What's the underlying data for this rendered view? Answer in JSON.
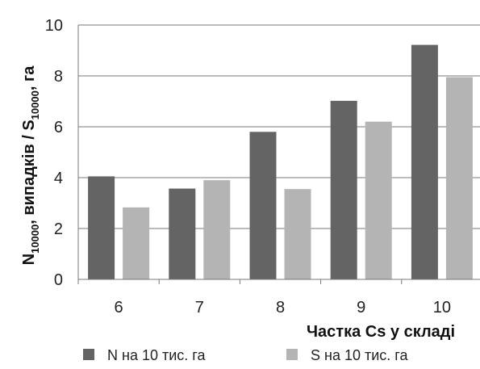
{
  "chart_data": {
    "type": "bar",
    "categories": [
      "6",
      "7",
      "8",
      "9",
      "10"
    ],
    "series": [
      {
        "name": "N на 10 тис. га",
        "values": [
          4.05,
          3.57,
          5.8,
          7.02,
          9.22
        ],
        "color": "#646464"
      },
      {
        "name": "S на 10 тис. га",
        "values": [
          2.83,
          3.9,
          3.55,
          6.2,
          7.95
        ],
        "color": "#b4b4b4"
      }
    ],
    "title": "",
    "xlabel": "Частка Cs у складі",
    "ylabel": {
      "n_main": "N",
      "n_sub": "10000",
      "middle": ", випадків / ",
      "s_main": "S",
      "s_sub": "10000",
      "end": ", га"
    },
    "ylim": [
      0,
      10
    ],
    "yticks": [
      "0",
      "2",
      "4",
      "6",
      "8",
      "10"
    ],
    "grid": "horizontal",
    "legend_position": "bottom"
  }
}
